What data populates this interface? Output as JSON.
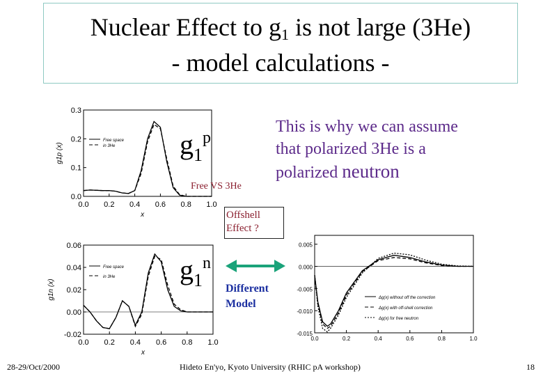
{
  "title": {
    "line1_main": "Nuclear Effect to g",
    "line1_sub": "1",
    "line1_end": " is not large (3He)",
    "line2": "- model calculations -"
  },
  "labels": {
    "g1p_base": "g",
    "g1p_sub": "1",
    "g1p_sup": "p",
    "g1n_base": "g",
    "g1n_sub": "1",
    "g1n_sup": "n",
    "free_vs": "Free VS 3He",
    "offshell_line1": "Offshell",
    "offshell_line2": "Effect ?",
    "different_line1": "Different",
    "different_line2": "Model"
  },
  "note": {
    "line1": "This is why we can assume",
    "line2": "that polarized  3He is a",
    "line3_a": "polarized ",
    "line3_b": "neutron"
  },
  "footer": {
    "date": "28-29/Oct/2000",
    "author": "Hideto En'yo, Kyoto University (RHIC pA workshop)",
    "page": "18"
  },
  "colors": {
    "title_border": "#8fc9c2",
    "note": "#5c2a8a",
    "accent_red": "#8a1e2e",
    "blue": "#1b2fa0",
    "arrow": "#1aa37a"
  },
  "chart_data": [
    {
      "type": "line",
      "ylabel": "g1p (x)",
      "xlabel": "x",
      "xlim": [
        0.0,
        1.0
      ],
      "ylim": [
        0.0,
        0.3
      ],
      "xticks": [
        "0.0",
        "0.2",
        "0.4",
        "0.6",
        "0.8",
        "1.0"
      ],
      "yticks": [
        "0.0",
        "0.1",
        "0.2",
        "0.3"
      ],
      "legend": [
        "Free space",
        "in 3He"
      ],
      "series": [
        {
          "name": "Free space",
          "x": [
            0,
            0.05,
            0.1,
            0.15,
            0.2,
            0.25,
            0.3,
            0.35,
            0.4,
            0.45,
            0.5,
            0.55,
            0.6,
            0.65,
            0.7,
            0.75,
            0.8,
            0.85,
            0.9,
            1.0
          ],
          "y": [
            0.02,
            0.022,
            0.021,
            0.02,
            0.02,
            0.018,
            0.012,
            0.01,
            0.02,
            0.09,
            0.2,
            0.26,
            0.24,
            0.12,
            0.03,
            0.004,
            0,
            0,
            0,
            0
          ]
        },
        {
          "name": "in 3He",
          "x": [
            0,
            0.05,
            0.1,
            0.15,
            0.2,
            0.25,
            0.3,
            0.35,
            0.4,
            0.45,
            0.5,
            0.55,
            0.6,
            0.65,
            0.7,
            0.75,
            0.8,
            0.85,
            0.9,
            1.0
          ],
          "y": [
            0.02,
            0.022,
            0.021,
            0.02,
            0.02,
            0.018,
            0.012,
            0.01,
            0.02,
            0.08,
            0.19,
            0.25,
            0.235,
            0.13,
            0.035,
            0.006,
            0,
            0,
            0,
            0
          ]
        }
      ]
    },
    {
      "type": "line",
      "ylabel": "g1n (x)",
      "xlabel": "x",
      "xlim": [
        0.0,
        1.0
      ],
      "ylim": [
        -0.02,
        0.06
      ],
      "xticks": [
        "0.0",
        "0.2",
        "0.4",
        "0.6",
        "0.8",
        "1.0"
      ],
      "yticks": [
        "-0.02",
        "0.00",
        "0.02",
        "0.04",
        "0.06"
      ],
      "legend": [
        "Free space",
        "in 3He"
      ],
      "series": [
        {
          "name": "Free space",
          "x": [
            0,
            0.05,
            0.1,
            0.15,
            0.2,
            0.25,
            0.3,
            0.35,
            0.4,
            0.45,
            0.5,
            0.55,
            0.6,
            0.65,
            0.7,
            0.75,
            0.8,
            0.85,
            0.9,
            1.0
          ],
          "y": [
            0.006,
            0.0,
            -0.008,
            -0.014,
            -0.015,
            -0.005,
            0.01,
            0.005,
            -0.012,
            0.0,
            0.035,
            0.052,
            0.045,
            0.02,
            0.005,
            0.001,
            0,
            0,
            0,
            0
          ]
        },
        {
          "name": "in 3He",
          "x": [
            0,
            0.05,
            0.1,
            0.15,
            0.2,
            0.25,
            0.3,
            0.35,
            0.4,
            0.45,
            0.5,
            0.55,
            0.6,
            0.65,
            0.7,
            0.75,
            0.8,
            0.85,
            0.9,
            1.0
          ],
          "y": [
            0.006,
            0.0,
            -0.008,
            -0.014,
            -0.015,
            -0.005,
            0.01,
            0.005,
            -0.013,
            -0.002,
            0.032,
            0.05,
            0.047,
            0.024,
            0.007,
            0.002,
            0,
            0,
            0,
            0
          ]
        }
      ]
    },
    {
      "type": "line",
      "xlim": [
        0.0,
        1.0
      ],
      "ylim": [
        -0.015,
        0.007
      ],
      "xticks": [
        "0.0",
        "0.2",
        "0.4",
        "0.6",
        "0.8",
        "1.0"
      ],
      "yticks": [
        "0.005",
        "0.000",
        "-0.005",
        "-0.010",
        "-0.015"
      ],
      "legend": [
        "Δg(x) without off the correction",
        "Δg(x) with off-shell correction",
        "Δg(x) for free neutron"
      ],
      "series": [
        {
          "name": "Δg(x) without off the correction",
          "x": [
            0,
            0.02,
            0.05,
            0.08,
            0.1,
            0.15,
            0.2,
            0.3,
            0.4,
            0.5,
            0.6,
            0.7,
            0.8,
            0.9,
            1.0
          ],
          "y": [
            -0.002,
            -0.008,
            -0.0125,
            -0.0135,
            -0.013,
            -0.01,
            -0.006,
            -0.001,
            0.0015,
            0.0025,
            0.002,
            0.001,
            0.0003,
            0.0,
            0.0
          ]
        },
        {
          "name": "Δg(x) with off-shell correction",
          "x": [
            0,
            0.02,
            0.05,
            0.08,
            0.1,
            0.15,
            0.2,
            0.3,
            0.4,
            0.5,
            0.6,
            0.7,
            0.8,
            0.9,
            1.0
          ],
          "y": [
            -0.002,
            -0.0085,
            -0.013,
            -0.014,
            -0.0135,
            -0.0105,
            -0.0065,
            -0.0012,
            0.0013,
            0.002,
            0.0017,
            0.0008,
            0.0002,
            0.0,
            0.0
          ]
        },
        {
          "name": "Δg(x) for free neutron",
          "x": [
            0,
            0.02,
            0.05,
            0.08,
            0.1,
            0.15,
            0.2,
            0.3,
            0.4,
            0.5,
            0.6,
            0.7,
            0.8,
            0.9,
            1.0
          ],
          "y": [
            -0.002,
            -0.009,
            -0.014,
            -0.0148,
            -0.014,
            -0.011,
            -0.007,
            -0.0015,
            0.0018,
            0.003,
            0.0026,
            0.0014,
            0.0005,
            0.0001,
            0.0
          ]
        }
      ]
    }
  ]
}
